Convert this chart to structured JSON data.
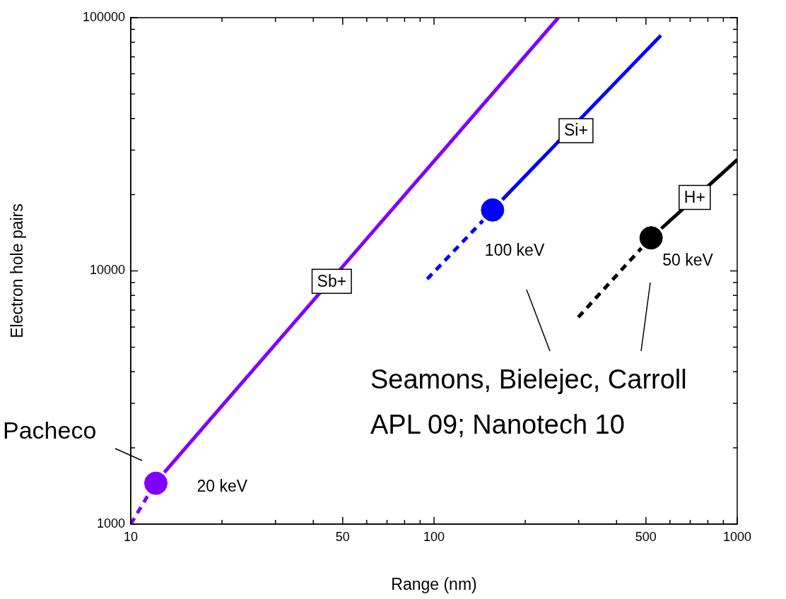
{
  "chart_data": {
    "type": "line",
    "xlabel": "Range (nm)",
    "ylabel": "Electron hole pairs",
    "log": "xy",
    "xlim": [
      10,
      1000
    ],
    "ylim": [
      1000,
      100000
    ],
    "xticks": [
      10,
      {
        "value": 20,
        "label": null
      },
      {
        "value": 30,
        "label": null
      },
      {
        "value": 40,
        "label": null
      },
      50,
      {
        "value": 60,
        "label": null
      },
      {
        "value": 70,
        "label": null
      },
      {
        "value": 80,
        "label": null
      },
      {
        "value": 90,
        "label": null
      },
      100,
      {
        "value": 200,
        "label": null
      },
      {
        "value": 300,
        "label": null
      },
      {
        "value": 400,
        "label": null
      },
      500,
      {
        "value": 600,
        "label": null
      },
      {
        "value": 700,
        "label": null
      },
      {
        "value": 800,
        "label": null
      },
      {
        "value": 900,
        "label": null
      },
      1000
    ],
    "yticks": [
      1000,
      {
        "value": 2000,
        "label": null
      },
      {
        "value": 3000,
        "label": null
      },
      {
        "value": 4000,
        "label": null
      },
      {
        "value": 5000,
        "label": null
      },
      {
        "value": 6000,
        "label": null
      },
      {
        "value": 7000,
        "label": null
      },
      {
        "value": 8000,
        "label": null
      },
      {
        "value": 9000,
        "label": null
      },
      10000,
      {
        "value": 20000,
        "label": null
      },
      {
        "value": 30000,
        "label": null
      },
      {
        "value": 40000,
        "label": null
      },
      {
        "value": 50000,
        "label": null
      },
      {
        "value": 60000,
        "label": null
      },
      {
        "value": 70000,
        "label": null
      },
      {
        "value": 80000,
        "label": null
      },
      {
        "value": 90000,
        "label": null
      },
      100000
    ],
    "grid": false,
    "legend": false,
    "marker": "none",
    "series": [
      {
        "color": "#8000ff",
        "line_style": "dashed",
        "x": [
          10,
          11.4
        ],
        "values": [
          1000,
          1300
        ]
      },
      {
        "color": "#8000ff",
        "line_style": "solid",
        "x": [
          12.9,
          257
        ],
        "values": [
          1600,
          100000
        ]
      },
      {
        "color": "#0000ff",
        "line_style": "dashed",
        "x": [
          95,
          145
        ],
        "values": [
          9290,
          15800
        ]
      },
      {
        "color": "#0000ff",
        "line_style": "solid",
        "x": [
          168,
          560
        ],
        "values": [
          19100,
          85100
        ]
      },
      {
        "color": "#000000",
        "line_style": "dashed",
        "x": [
          299,
          483
        ],
        "values": [
          6560,
          12300
        ]
      },
      {
        "color": "#000000",
        "line_style": "solid",
        "x": [
          562,
          1000
        ],
        "values": [
          14700,
          27500
        ]
      },
      {
        "type": "scatter",
        "marker": "circle",
        "color": "#8000ff",
        "x": [
          12.1
        ],
        "values": [
          1450
        ]
      },
      {
        "type": "scatter",
        "marker": "circle",
        "color": "#0000ff",
        "x": [
          156
        ],
        "values": [
          17400
        ]
      },
      {
        "type": "scatter",
        "marker": "circle",
        "color": "#000000",
        "x": [
          520
        ],
        "values": [
          13500
        ]
      }
    ],
    "annotations": [
      {
        "text": "Sb+",
        "x": 46,
        "y": 9100
      },
      {
        "text": "Si+",
        "x": 294,
        "y": 35800
      },
      {
        "text": "H+",
        "x": 724,
        "y": 19500
      },
      {
        "text": "20 keV",
        "x": 12.1,
        "y": 1450
      },
      {
        "text": "100 keV",
        "x": 156,
        "y": 17400
      },
      {
        "text": "50 keV",
        "x": 520,
        "y": 13500
      },
      "Seamons, Bielejec, Carroll\nAPL 09; Nanotech 10",
      "Pacheco"
    ]
  }
}
